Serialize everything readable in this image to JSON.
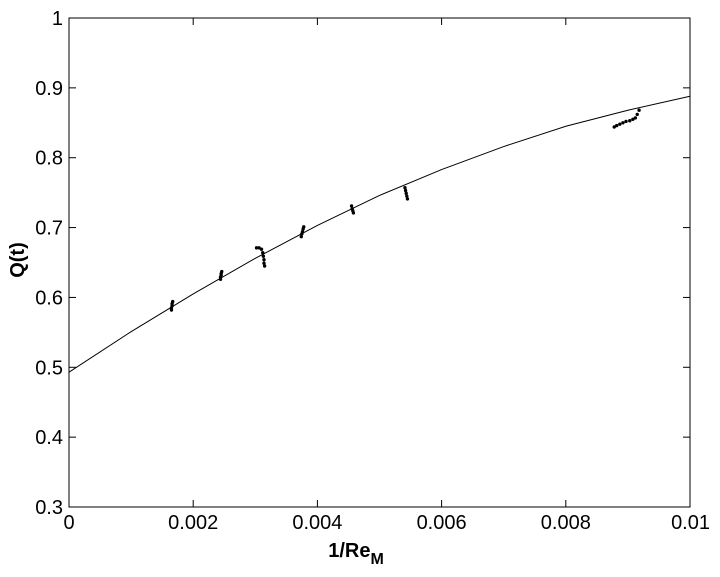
{
  "chart_data": {
    "type": "line",
    "title": "",
    "xlabel": "1/Re",
    "xlabel_subscript": "M",
    "ylabel": "Q(t)",
    "xlim": [
      0,
      0.01
    ],
    "ylim": [
      0.3,
      1.0
    ],
    "x_ticks": [
      0,
      0.002,
      0.004,
      0.006,
      0.008,
      0.01
    ],
    "x_tick_labels": [
      "0",
      "0.002",
      "0.004",
      "0.006",
      "0.008",
      "0.01"
    ],
    "y_ticks": [
      0.3,
      0.4,
      0.5,
      0.6,
      0.7,
      0.8,
      0.9,
      1.0
    ],
    "y_tick_labels": [
      "0.3",
      "0.4",
      "0.5",
      "0.6",
      "0.7",
      "0.8",
      "0.9",
      "1"
    ],
    "grid": false,
    "legend": "none",
    "colors": {
      "line": "#000000",
      "markers": "#000000",
      "axes": "#000000",
      "background": "#ffffff"
    },
    "series": [
      {
        "style": "solid-line",
        "x": [
          0,
          0.001,
          0.002,
          0.003,
          0.004,
          0.005,
          0.006,
          0.007,
          0.008,
          0.009,
          0.01
        ],
        "y": [
          0.493,
          0.551,
          0.605,
          0.656,
          0.703,
          0.746,
          0.783,
          0.816,
          0.845,
          0.868,
          0.888
        ]
      },
      {
        "style": "dotted-clusters",
        "clusters": [
          {
            "x": [
              0.00165,
              0.00165,
              0.00166,
              0.00166,
              0.00167
            ],
            "y": [
              0.582,
              0.585,
              0.588,
              0.591,
              0.594
            ]
          },
          {
            "x": [
              0.00244,
              0.00244,
              0.00245,
              0.00245,
              0.00246
            ],
            "y": [
              0.626,
              0.629,
              0.632,
              0.634,
              0.637
            ]
          },
          {
            "x": [
              0.00302,
              0.00306,
              0.0031,
              0.00312,
              0.00313,
              0.00314,
              0.00314,
              0.00315
            ],
            "y": [
              0.671,
              0.671,
              0.669,
              0.664,
              0.659,
              0.654,
              0.649,
              0.645
            ]
          },
          {
            "x": [
              0.00374,
              0.00375,
              0.00376,
              0.00377,
              0.00378
            ],
            "y": [
              0.687,
              0.691,
              0.694,
              0.698,
              0.701
            ]
          },
          {
            "x": [
              0.00455,
              0.00456,
              0.00457,
              0.00458
            ],
            "y": [
              0.731,
              0.727,
              0.724,
              0.721
            ]
          },
          {
            "x": [
              0.00541,
              0.00542,
              0.00543,
              0.00544,
              0.00545
            ],
            "y": [
              0.757,
              0.753,
              0.749,
              0.745,
              0.741
            ]
          },
          {
            "x": [
              0.00878,
              0.00882,
              0.00887,
              0.00892,
              0.00897,
              0.00903,
              0.00908,
              0.00912,
              0.00915,
              0.00918
            ],
            "y": [
              0.844,
              0.846,
              0.848,
              0.85,
              0.852,
              0.853,
              0.855,
              0.857,
              0.862,
              0.868
            ]
          }
        ]
      }
    ]
  }
}
